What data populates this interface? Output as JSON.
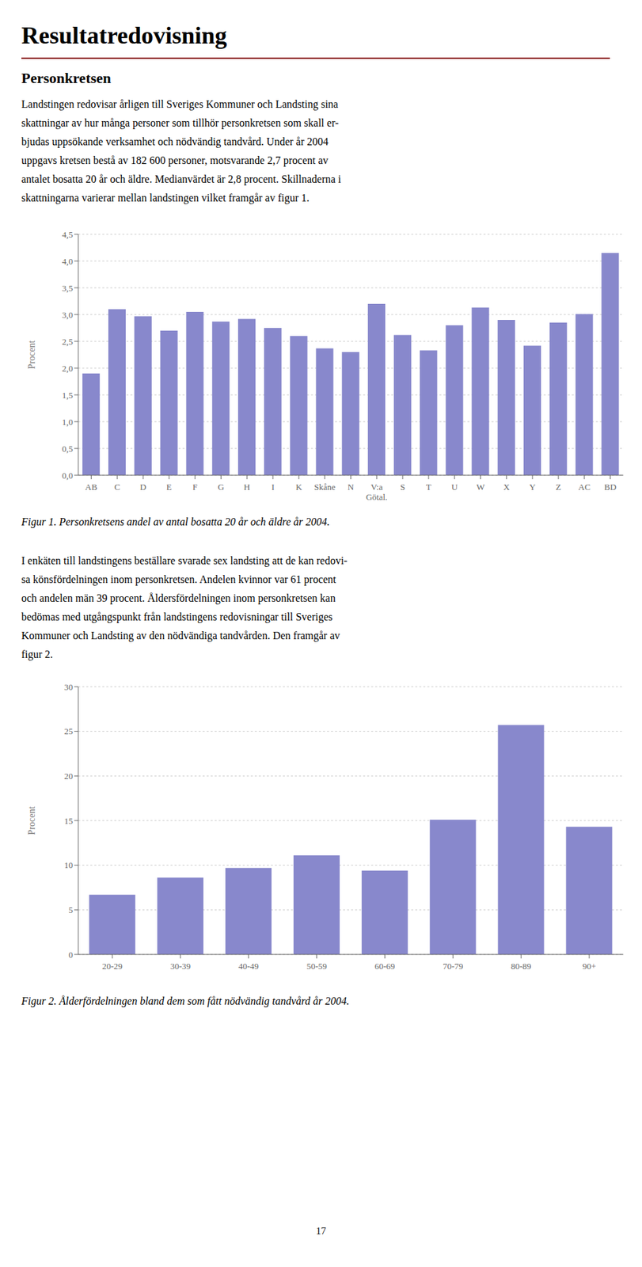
{
  "title": "Resultatredovisning",
  "subtitle": "Personkretsen",
  "annotations": [
    "Landstingen redovisar årligen till Sveriges Kommuner och Landsting sina",
    "skattningar av hur många personer som tillhör personkretsen som skall er-",
    "bjudas uppsökande verksamhet och nödvändig tandvård. Under år 2004",
    "uppgavs kretsen bestå av 182 600 personer, motsvarande 2,7 procent av",
    "antalet bosatta 20 år och äldre. Medianvärdet är 2,8 procent. Skillnaderna i",
    "skattningarna varierar mellan landstingen vilket framgår av figur 1."
  ],
  "footer": "17",
  "chart_data": [
    {
      "type": "bar",
      "title": "Figur 1. Personkretsens andel av antal bosatta 20 år och äldre år 2004.",
      "categories": [
        "AB",
        "C",
        "D",
        "E",
        "F",
        "G",
        "H",
        "I",
        "K",
        "Skåne",
        "N",
        "V:a\nGötal.",
        "S",
        "T",
        "U",
        "W",
        "X",
        "Y",
        "Z",
        "AC",
        "BD"
      ],
      "values": [
        1.9,
        3.1,
        2.97,
        2.7,
        3.05,
        2.87,
        2.92,
        2.75,
        2.6,
        2.37,
        2.3,
        3.2,
        2.62,
        2.33,
        2.8,
        3.13,
        2.9,
        2.42,
        2.85,
        3.01,
        4.15
      ],
      "color": "#8888cc",
      "ylabel": "Procent",
      "ylim": [
        0,
        4.5
      ],
      "yticks": [
        {
          "value": 0.0,
          "label": "0,0"
        },
        {
          "value": 0.5,
          "label": "0,5"
        },
        {
          "value": 1.0,
          "label": "1,0"
        },
        {
          "value": 1.5,
          "label": "1,5"
        },
        {
          "value": 2.0,
          "label": "2,0"
        },
        {
          "value": 2.5,
          "label": "2,5"
        },
        {
          "value": 3.0,
          "label": "3,0"
        },
        {
          "value": 3.5,
          "label": "3,5"
        },
        {
          "value": 4.0,
          "label": "4,0"
        },
        {
          "value": 4.5,
          "label": "4,5"
        }
      ],
      "grid": true
    },
    {
      "type": "bar",
      "title": "Figur 2. Ålderfördelningen bland dem som fått nödvändig tandvård år 2004.",
      "annotations": [
        "I enkäten till landstingens beställare svarade sex landsting att de kan redovi-",
        "sa könsfördelningen inom personkretsen. Andelen kvinnor var 61 procent",
        "och andelen män 39 procent. Åldersfördelningen inom personkretsen kan",
        "bedömas med utgångspunkt från landstingens redovisningar till Sveriges",
        "Kommuner och Landsting av den nödvändiga tandvården. Den framgår av",
        "figur 2."
      ],
      "categories": [
        "20-29",
        "30-39",
        "40-49",
        "50-59",
        "60-69",
        "70-79",
        "80-89",
        "90+"
      ],
      "values": [
        6.7,
        8.6,
        9.7,
        11.1,
        9.4,
        15.1,
        25.7,
        14.3
      ],
      "color": "#8888cc",
      "ylabel": "Procent",
      "ylim": [
        0,
        30
      ],
      "yticks": [
        0,
        5,
        10,
        15,
        20,
        25,
        30
      ],
      "grid": true
    }
  ]
}
